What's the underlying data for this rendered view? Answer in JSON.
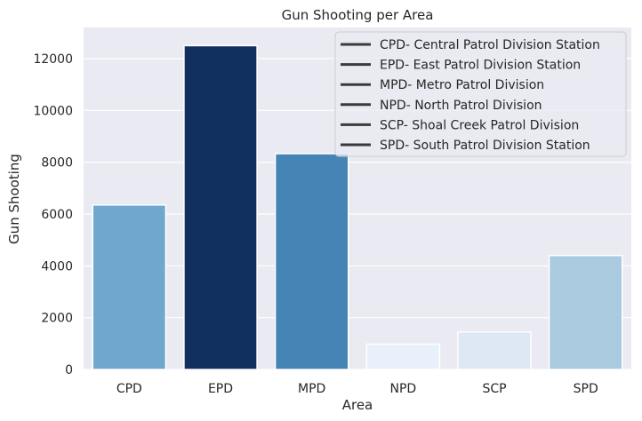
{
  "chart_data": {
    "type": "bar",
    "title": "Gun Shooting per Area",
    "xlabel": "Area",
    "ylabel": "Gun Shooting",
    "categories": [
      "CPD",
      "EPD",
      "MPD",
      "NPD",
      "SCP",
      "SPD"
    ],
    "values": [
      6350,
      12500,
      8330,
      980,
      1450,
      4400
    ],
    "bar_colors": [
      "#6fa8cf",
      "#12305f",
      "#4684b6",
      "#e8f1fb",
      "#dde8f4",
      "#aacae0"
    ],
    "ylim": [
      0,
      13200
    ],
    "yticks": [
      0,
      2000,
      4000,
      6000,
      8000,
      10000,
      12000
    ],
    "grid": true,
    "background": "#eaeaf2",
    "legend_position": "top-right",
    "legend": [
      "CPD- Central Patrol Division Station",
      "EPD- East Patrol Division Station",
      "MPD- Metro Patrol Division",
      "NPD- North Patrol Division",
      "SCP- Shoal Creek Patrol Division",
      "SPD- South Patrol Division Station"
    ]
  }
}
